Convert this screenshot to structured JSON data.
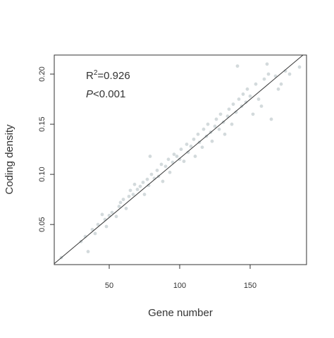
{
  "chart_data": {
    "type": "scatter",
    "xlabel": "Gene number",
    "ylabel": "Coding density",
    "annotations": {
      "r_text": "R",
      "r_sup": "2",
      "r_value": "=0.926",
      "p_text": "P",
      "p_value": "<0.001"
    },
    "color": "#d3dadc",
    "line_color": "#333333",
    "xlim": [
      11,
      190
    ],
    "ylim": [
      0.01,
      0.219
    ],
    "xticks": [
      50,
      100,
      150
    ],
    "yticks": [
      0.05,
      {
        "value": 0.1,
        "label": "0.10"
      },
      0.15,
      {
        "value": 0.2,
        "label": "0.20"
      }
    ],
    "fit": {
      "x": [
        11,
        187.5
      ],
      "y": [
        0.011,
        0.219
      ]
    },
    "x": [
      16,
      30,
      33,
      35,
      38,
      40,
      42,
      45,
      47,
      48,
      50,
      52,
      55,
      57,
      58,
      60,
      62,
      64,
      65,
      67,
      68,
      70,
      72,
      74,
      75,
      77,
      78,
      79,
      80,
      82,
      84,
      85,
      87,
      88,
      90,
      92,
      93,
      95,
      96,
      98,
      100,
      101,
      103,
      105,
      106,
      108,
      110,
      111,
      113,
      114,
      116,
      117,
      119,
      120,
      122,
      123,
      125,
      126,
      128,
      129,
      131,
      132,
      134,
      135,
      137,
      138,
      140,
      141,
      142,
      144,
      145,
      147,
      148,
      150,
      152,
      154,
      156,
      158,
      160,
      162,
      163,
      165,
      168,
      170,
      172,
      175,
      178,
      185
    ],
    "values": [
      0.017,
      0.033,
      0.038,
      0.023,
      0.045,
      0.041,
      0.05,
      0.06,
      0.055,
      0.048,
      0.059,
      0.062,
      0.058,
      0.068,
      0.072,
      0.075,
      0.066,
      0.078,
      0.084,
      0.08,
      0.09,
      0.085,
      0.088,
      0.092,
      0.08,
      0.095,
      0.089,
      0.118,
      0.1,
      0.096,
      0.104,
      0.098,
      0.11,
      0.093,
      0.108,
      0.115,
      0.102,
      0.112,
      0.12,
      0.118,
      0.115,
      0.125,
      0.113,
      0.13,
      0.122,
      0.128,
      0.135,
      0.118,
      0.14,
      0.132,
      0.127,
      0.145,
      0.138,
      0.15,
      0.142,
      0.133,
      0.148,
      0.155,
      0.145,
      0.16,
      0.152,
      0.14,
      0.158,
      0.165,
      0.15,
      0.17,
      0.162,
      0.208,
      0.175,
      0.168,
      0.18,
      0.172,
      0.185,
      0.178,
      0.16,
      0.19,
      0.175,
      0.168,
      0.195,
      0.21,
      0.2,
      0.155,
      0.198,
      0.185,
      0.19,
      0.203,
      0.2,
      0.207
    ]
  }
}
